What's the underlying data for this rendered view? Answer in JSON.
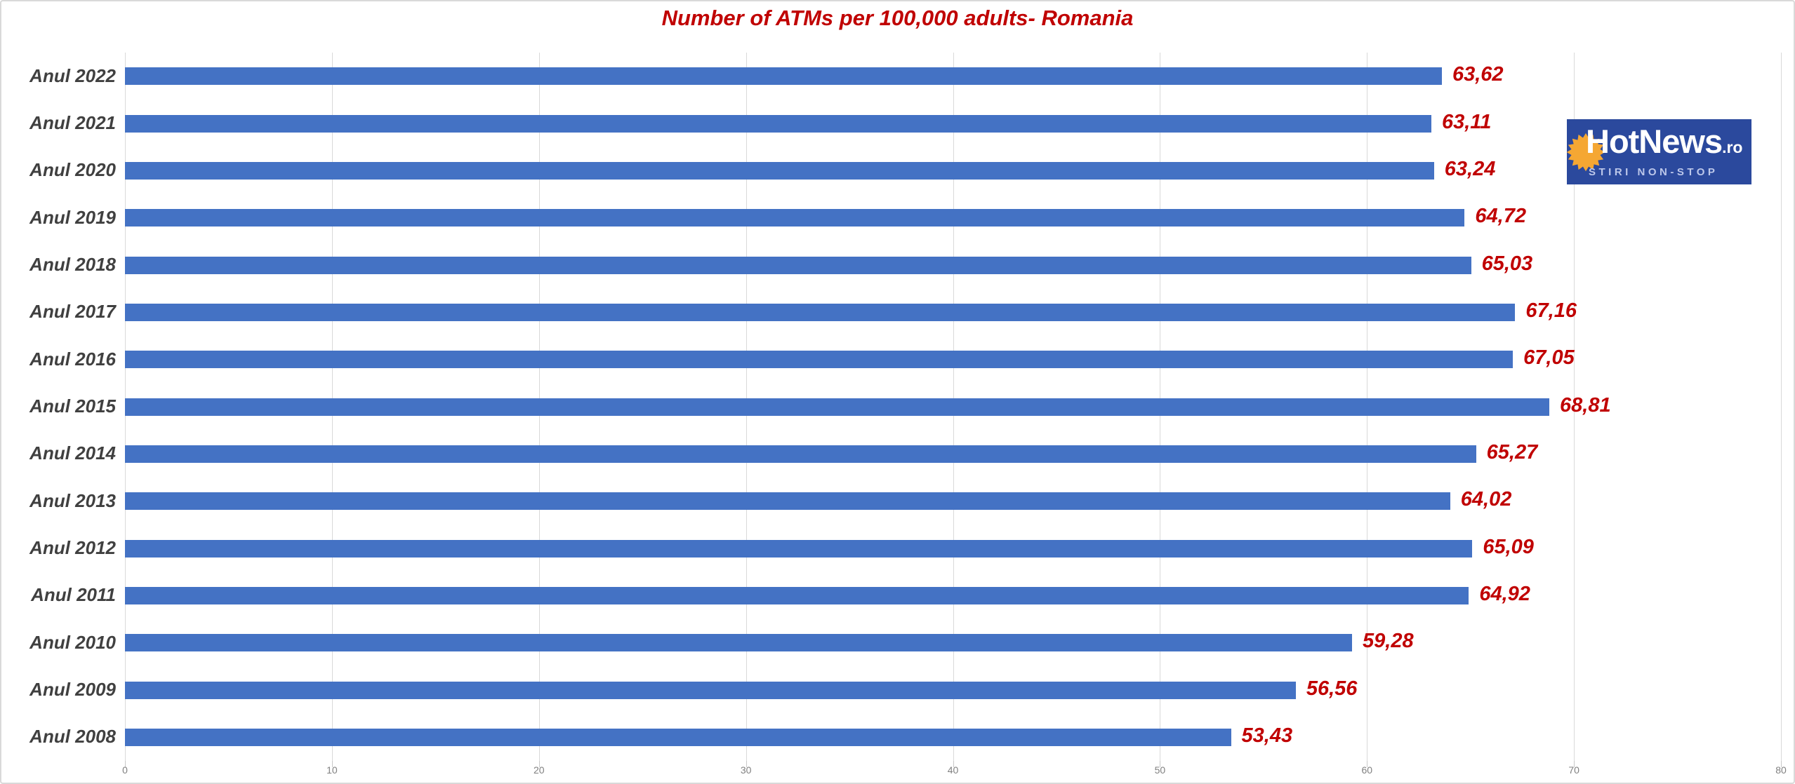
{
  "title": "Number of ATMs per 100,000 adults- Romania",
  "colors": {
    "title": "#c00000",
    "bar": "#4472c4",
    "value_label": "#c00000",
    "category_label": "#404040",
    "tick_label": "#808080",
    "gridline": "#d9d9d9"
  },
  "chart_data": {
    "type": "bar",
    "orientation": "horizontal",
    "title": "Number of ATMs per 100,000 adults- Romania",
    "categories": [
      "Anul 2022",
      "Anul 2021",
      "Anul 2020",
      "Anul 2019",
      "Anul 2018",
      "Anul 2017",
      "Anul 2016",
      "Anul 2015",
      "Anul 2014",
      "Anul 2013",
      "Anul 2012",
      "Anul 2011",
      "Anul 2010",
      "Anul 2009",
      "Anul 2008"
    ],
    "values": [
      63.62,
      63.11,
      63.24,
      64.72,
      65.03,
      67.16,
      67.05,
      68.81,
      65.27,
      64.02,
      65.09,
      64.92,
      59.28,
      56.56,
      53.43
    ],
    "value_labels": [
      "63,62",
      "63,11",
      "63,24",
      "64,72",
      "65,03",
      "67,16",
      "67,05",
      "68,81",
      "65,27",
      "64,02",
      "65,09",
      "64,92",
      "59,28",
      "56,56",
      "53,43"
    ],
    "xlabel": "",
    "ylabel": "",
    "xlim": [
      0,
      80
    ],
    "x_ticks": [
      0,
      10,
      20,
      30,
      40,
      50,
      60,
      70,
      80
    ],
    "x_tick_labels": [
      "0",
      "10",
      "20",
      "30",
      "40",
      "50",
      "60",
      "70",
      "80"
    ],
    "grid": "vertical",
    "legend": "none"
  },
  "logo": {
    "wordmark": "HotNews",
    "suffix": ".ro",
    "tagline": "STIRI NON-STOP",
    "bg_color": "#2b499d",
    "sun_color": "#f5a733",
    "text_color": "#ffffff",
    "tagline_color": "#bcc7ea",
    "sun_icon": "sunburst"
  }
}
